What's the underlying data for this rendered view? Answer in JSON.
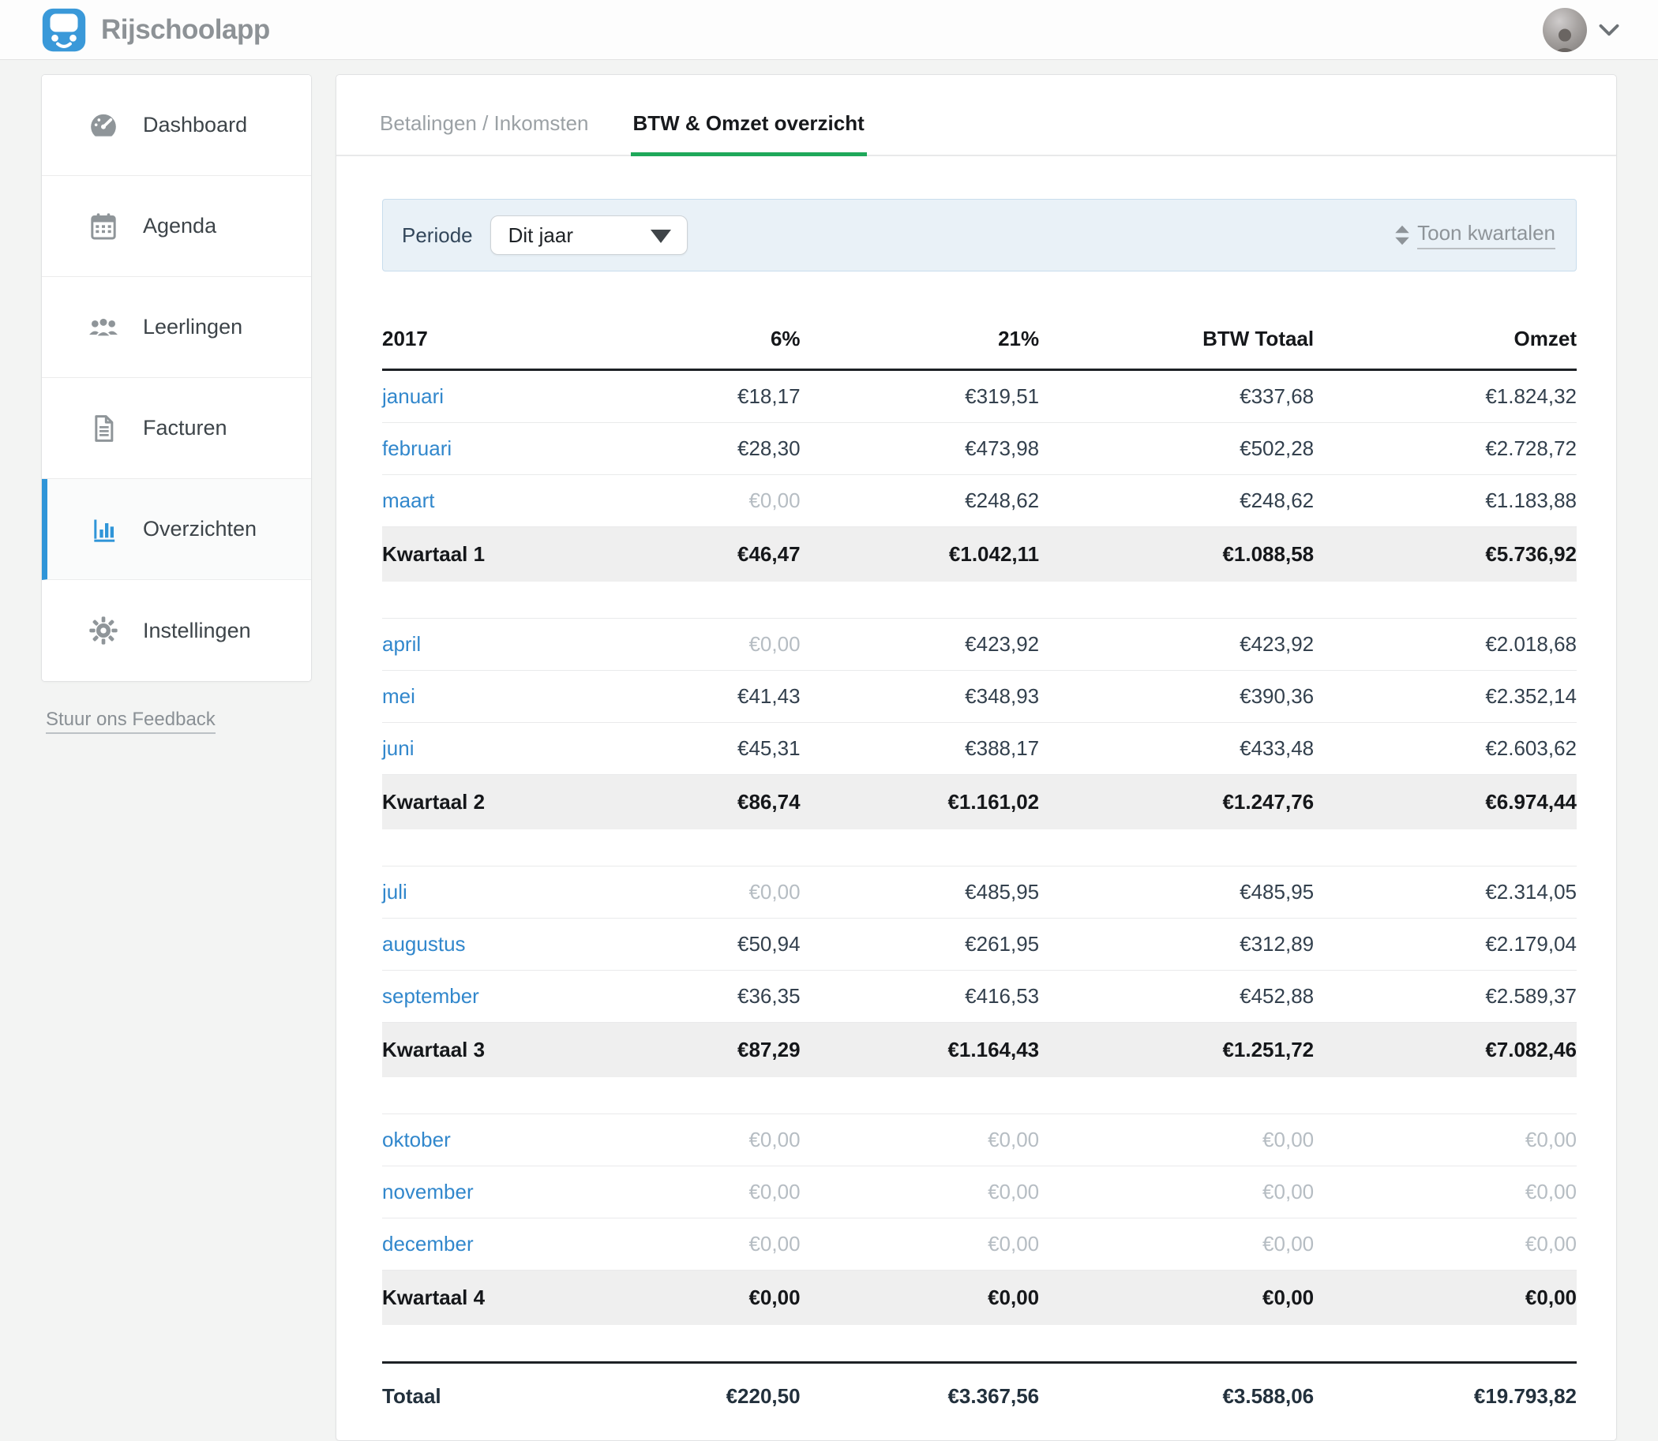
{
  "header": {
    "app_name": "Rijschoolapp"
  },
  "sidebar": {
    "items": [
      {
        "label": "Dashboard",
        "icon": "dashboard-icon",
        "active": false
      },
      {
        "label": "Agenda",
        "icon": "calendar-icon",
        "active": false
      },
      {
        "label": "Leerlingen",
        "icon": "users-icon",
        "active": false
      },
      {
        "label": "Facturen",
        "icon": "invoice-icon",
        "active": false
      },
      {
        "label": "Overzichten",
        "icon": "bar-chart-icon",
        "active": true
      },
      {
        "label": "Instellingen",
        "icon": "gear-icon",
        "active": false
      }
    ],
    "feedback_link": "Stuur ons Feedback"
  },
  "tabs": [
    {
      "label": "Betalingen / Inkomsten",
      "active": false
    },
    {
      "label": "BTW & Omzet overzicht",
      "active": true
    }
  ],
  "filter": {
    "label": "Periode",
    "selected_option": "Dit jaar",
    "toggle_link": "Toon kwartalen"
  },
  "colors": {
    "accent_blue": "#2f95d8",
    "link_blue": "#3187cc",
    "tab_green": "#1ea85a",
    "quarter_row_bg": "#efefef",
    "zero_value_gray": "#b6bdc3",
    "filter_bar_bg": "#e9f1f7"
  },
  "chart_data": {
    "type": "table",
    "title": "BTW & Omzet overzicht",
    "columns": [
      "2017",
      "6%",
      "21%",
      "BTW Totaal",
      "Omzet"
    ],
    "sections": [
      {
        "rows": [
          [
            "januari",
            "€18,17",
            "€319,51",
            "€337,68",
            "€1.824,32"
          ],
          [
            "februari",
            "€28,30",
            "€473,98",
            "€502,28",
            "€2.728,72"
          ],
          [
            "maart",
            "€0,00",
            "€248,62",
            "€248,62",
            "€1.183,88"
          ]
        ],
        "subtotal": [
          "Kwartaal 1",
          "€46,47",
          "€1.042,11",
          "€1.088,58",
          "€5.736,92"
        ]
      },
      {
        "rows": [
          [
            "april",
            "€0,00",
            "€423,92",
            "€423,92",
            "€2.018,68"
          ],
          [
            "mei",
            "€41,43",
            "€348,93",
            "€390,36",
            "€2.352,14"
          ],
          [
            "juni",
            "€45,31",
            "€388,17",
            "€433,48",
            "€2.603,62"
          ]
        ],
        "subtotal": [
          "Kwartaal 2",
          "€86,74",
          "€1.161,02",
          "€1.247,76",
          "€6.974,44"
        ]
      },
      {
        "rows": [
          [
            "juli",
            "€0,00",
            "€485,95",
            "€485,95",
            "€2.314,05"
          ],
          [
            "augustus",
            "€50,94",
            "€261,95",
            "€312,89",
            "€2.179,04"
          ],
          [
            "september",
            "€36,35",
            "€416,53",
            "€452,88",
            "€2.589,37"
          ]
        ],
        "subtotal": [
          "Kwartaal 3",
          "€87,29",
          "€1.164,43",
          "€1.251,72",
          "€7.082,46"
        ]
      },
      {
        "rows": [
          [
            "oktober",
            "€0,00",
            "€0,00",
            "€0,00",
            "€0,00"
          ],
          [
            "november",
            "€0,00",
            "€0,00",
            "€0,00",
            "€0,00"
          ],
          [
            "december",
            "€0,00",
            "€0,00",
            "€0,00",
            "€0,00"
          ]
        ],
        "subtotal": [
          "Kwartaal 4",
          "€0,00",
          "€0,00",
          "€0,00",
          "€0,00"
        ]
      }
    ],
    "total": [
      "Totaal",
      "€220,50",
      "€3.367,56",
      "€3.588,06",
      "€19.793,82"
    ]
  }
}
